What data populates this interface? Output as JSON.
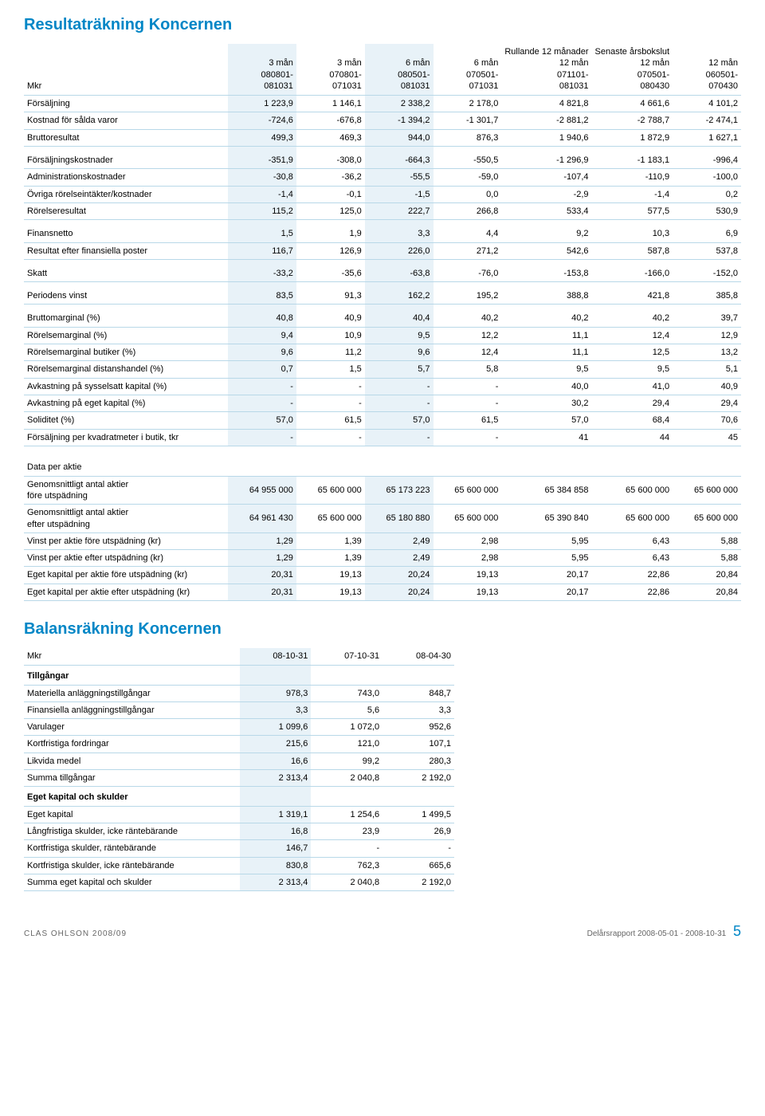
{
  "income": {
    "title": "Resultaträkning Koncernen",
    "unit_label": "Mkr",
    "columns": [
      {
        "l1": "",
        "l2": "3 mån",
        "l3": "080801-",
        "l4": "081031"
      },
      {
        "l1": "",
        "l2": "3 mån",
        "l3": "070801-",
        "l4": "071031"
      },
      {
        "l1": "",
        "l2": "6 mån",
        "l3": "080501-",
        "l4": "081031"
      },
      {
        "l1": "",
        "l2": "6 mån",
        "l3": "070501-",
        "l4": "071031"
      },
      {
        "l1": "Rullande 12 månader",
        "l2": "12 mån",
        "l3": "071101-",
        "l4": "081031"
      },
      {
        "l1": "Senaste årsbokslut",
        "l2": "12 mån",
        "l3": "070501-",
        "l4": "080430"
      },
      {
        "l1": "",
        "l2": "12 mån",
        "l3": "060501-",
        "l4": "070430"
      }
    ],
    "groups": [
      [
        {
          "label": "Försäljning",
          "v": [
            "1 223,9",
            "1 146,1",
            "2 338,2",
            "2 178,0",
            "4 821,8",
            "4 661,6",
            "4 101,2"
          ]
        },
        {
          "label": "Kostnad för sålda varor",
          "v": [
            "-724,6",
            "-676,8",
            "-1 394,2",
            "-1 301,7",
            "-2 881,2",
            "-2 788,7",
            "-2 474,1"
          ]
        },
        {
          "label": "Bruttoresultat",
          "v": [
            "499,3",
            "469,3",
            "944,0",
            "876,3",
            "1 940,6",
            "1 872,9",
            "1 627,1"
          ]
        }
      ],
      [
        {
          "label": "Försäljningskostnader",
          "v": [
            "-351,9",
            "-308,0",
            "-664,3",
            "-550,5",
            "-1 296,9",
            "-1 183,1",
            "-996,4"
          ]
        },
        {
          "label": "Administrationskostnader",
          "v": [
            "-30,8",
            "-36,2",
            "-55,5",
            "-59,0",
            "-107,4",
            "-110,9",
            "-100,0"
          ]
        },
        {
          "label": "Övriga rörelseintäkter/kostnader",
          "v": [
            "-1,4",
            "-0,1",
            "-1,5",
            "0,0",
            "-2,9",
            "-1,4",
            "0,2"
          ]
        },
        {
          "label": "Rörelseresultat",
          "v": [
            "115,2",
            "125,0",
            "222,7",
            "266,8",
            "533,4",
            "577,5",
            "530,9"
          ]
        }
      ],
      [
        {
          "label": "Finansnetto",
          "v": [
            "1,5",
            "1,9",
            "3,3",
            "4,4",
            "9,2",
            "10,3",
            "6,9"
          ]
        },
        {
          "label": "Resultat efter finansiella poster",
          "v": [
            "116,7",
            "126,9",
            "226,0",
            "271,2",
            "542,6",
            "587,8",
            "537,8"
          ]
        }
      ],
      [
        {
          "label": "Skatt",
          "v": [
            "-33,2",
            "-35,6",
            "-63,8",
            "-76,0",
            "-153,8",
            "-166,0",
            "-152,0"
          ]
        }
      ],
      [
        {
          "label": "Periodens vinst",
          "v": [
            "83,5",
            "91,3",
            "162,2",
            "195,2",
            "388,8",
            "421,8",
            "385,8"
          ]
        }
      ],
      [
        {
          "label": "Bruttomarginal (%)",
          "v": [
            "40,8",
            "40,9",
            "40,4",
            "40,2",
            "40,2",
            "40,2",
            "39,7"
          ]
        },
        {
          "label": "Rörelsemarginal (%)",
          "v": [
            "9,4",
            "10,9",
            "9,5",
            "12,2",
            "11,1",
            "12,4",
            "12,9"
          ]
        },
        {
          "label": "Rörelsemarginal butiker (%)",
          "v": [
            "9,6",
            "11,2",
            "9,6",
            "12,4",
            "11,1",
            "12,5",
            "13,2"
          ]
        },
        {
          "label": "Rörelsemarginal distanshandel (%)",
          "v": [
            "0,7",
            "1,5",
            "5,7",
            "5,8",
            "9,5",
            "9,5",
            "5,1"
          ]
        },
        {
          "label": "Avkastning på sysselsatt kapital (%)",
          "v": [
            "-",
            "-",
            "-",
            "-",
            "40,0",
            "41,0",
            "40,9"
          ]
        },
        {
          "label": "Avkastning på eget kapital (%)",
          "v": [
            "-",
            "-",
            "-",
            "-",
            "30,2",
            "29,4",
            "29,4"
          ]
        },
        {
          "label": "Soliditet (%)",
          "v": [
            "57,0",
            "61,5",
            "57,0",
            "61,5",
            "57,0",
            "68,4",
            "70,6"
          ]
        },
        {
          "label": "Försäljning per kvadratmeter i butik, tkr",
          "v": [
            "-",
            "-",
            "-",
            "-",
            "41",
            "44",
            "45"
          ]
        }
      ]
    ],
    "share_section_label": "Data per aktie",
    "share_rows": [
      {
        "label": "Genomsnittligt antal aktier före utspädning",
        "v": [
          "64 955 000",
          "65 600 000",
          "65 173 223",
          "65 600 000",
          "65 384 858",
          "65 600 000",
          "65 600 000"
        ],
        "twoLine": true,
        "l1": "Genomsnittligt antal aktier",
        "l2": "före utspädning"
      },
      {
        "label": "Genomsnittligt antal aktier efter utspädning",
        "v": [
          "64 961 430",
          "65 600 000",
          "65 180 880",
          "65 600 000",
          "65 390 840",
          "65 600 000",
          "65 600 000"
        ],
        "twoLine": true,
        "l1": "Genomsnittligt antal aktier",
        "l2": "efter utspädning"
      },
      {
        "label": "Vinst per aktie före utspädning (kr)",
        "v": [
          "1,29",
          "1,39",
          "2,49",
          "2,98",
          "5,95",
          "6,43",
          "5,88"
        ]
      },
      {
        "label": "Vinst per aktie efter utspädning (kr)",
        "v": [
          "1,29",
          "1,39",
          "2,49",
          "2,98",
          "5,95",
          "6,43",
          "5,88"
        ]
      },
      {
        "label": "Eget kapital per aktie före utspädning (kr)",
        "v": [
          "20,31",
          "19,13",
          "20,24",
          "19,13",
          "20,17",
          "22,86",
          "20,84"
        ]
      },
      {
        "label": "Eget kapital per aktie efter utspädning (kr)",
        "v": [
          "20,31",
          "19,13",
          "20,24",
          "19,13",
          "20,17",
          "22,86",
          "20,84"
        ]
      }
    ]
  },
  "balance": {
    "title": "Balansräkning Koncernen",
    "unit_label": "Mkr",
    "columns": [
      "08-10-31",
      "07-10-31",
      "08-04-30"
    ],
    "sections": [
      {
        "header": "Tillgångar",
        "rows": [
          {
            "label": "Materiella anläggningstillgångar",
            "v": [
              "978,3",
              "743,0",
              "848,7"
            ]
          },
          {
            "label": "Finansiella anläggningstillgångar",
            "v": [
              "3,3",
              "5,6",
              "3,3"
            ]
          },
          {
            "label": "Varulager",
            "v": [
              "1 099,6",
              "1 072,0",
              "952,6"
            ]
          },
          {
            "label": "Kortfristiga fordringar",
            "v": [
              "215,6",
              "121,0",
              "107,1"
            ]
          },
          {
            "label": "Likvida medel",
            "v": [
              "16,6",
              "99,2",
              "280,3"
            ]
          },
          {
            "label": "Summa tillgångar",
            "v": [
              "2 313,4",
              "2 040,8",
              "2 192,0"
            ]
          }
        ]
      },
      {
        "header": "Eget kapital och skulder",
        "rows": [
          {
            "label": "Eget kapital",
            "v": [
              "1 319,1",
              "1 254,6",
              "1 499,5"
            ]
          },
          {
            "label": "Långfristiga skulder, icke räntebärande",
            "v": [
              "16,8",
              "23,9",
              "26,9"
            ]
          },
          {
            "label": "Kortfristiga skulder, räntebärande",
            "v": [
              "146,7",
              "-",
              "-"
            ]
          },
          {
            "label": "Kortfristiga skulder, icke räntebärande",
            "v": [
              "830,8",
              "762,3",
              "665,6"
            ]
          },
          {
            "label": "Summa eget kapital och skulder",
            "v": [
              "2 313,4",
              "2 040,8",
              "2 192,0"
            ]
          }
        ]
      }
    ]
  },
  "footer": {
    "left": "CLAS OHLSON 2008/09",
    "right": "Delårsrapport 2008-05-01 - 2008-10-31",
    "page": "5"
  },
  "style": {
    "accent": "#0086c6",
    "highlight_bg": "#e8f2f8",
    "rule": "#b8d8e8"
  }
}
